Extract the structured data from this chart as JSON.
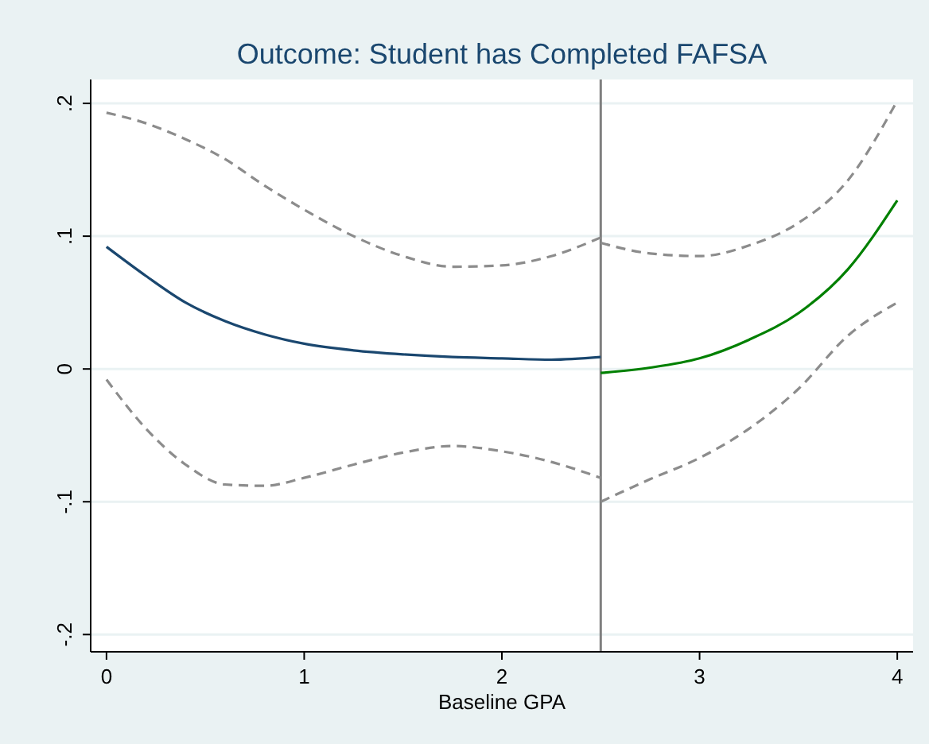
{
  "chart_data": {
    "type": "line",
    "title": "Outcome: Student has Completed FAFSA",
    "xlabel": "Baseline GPA",
    "xlim": [
      -0.08,
      4.08
    ],
    "xticks": [
      0,
      1,
      2,
      3,
      4
    ],
    "ylim": [
      -0.213,
      0.218
    ],
    "yticks": [
      {
        "value": -0.2,
        "label": "-.2"
      },
      {
        "value": -0.1,
        "label": "-.1"
      },
      0,
      {
        "value": 0.1,
        "label": ".1"
      },
      {
        "value": 0.2,
        "label": ".2"
      }
    ],
    "grid": "y",
    "line_style": "solid",
    "ref_lines": [
      {
        "axis": "x",
        "value": 2.5,
        "color": "#7f7f7f"
      }
    ],
    "series": [
      {
        "color": "#8c8c8c",
        "line_style": "dashed",
        "x": [
          0,
          0.2,
          0.4,
          0.6,
          0.8,
          1,
          1.25,
          1.5,
          1.75,
          2,
          2.25,
          2.5
        ],
        "values": [
          0.193,
          0.185,
          0.173,
          0.158,
          0.138,
          0.12,
          0.1,
          0.085,
          0.077,
          0.078,
          0.085,
          0.099
        ]
      },
      {
        "color": "#8c8c8c",
        "line_style": "dashed",
        "x": [
          0,
          0.2,
          0.4,
          0.6,
          0.8,
          1,
          1.25,
          1.5,
          1.75,
          2,
          2.25,
          2.5
        ],
        "values": [
          -0.008,
          -0.045,
          -0.072,
          -0.087,
          -0.088,
          -0.082,
          -0.072,
          -0.063,
          -0.058,
          -0.062,
          -0.07,
          -0.082
        ]
      },
      {
        "color": "#8c8c8c",
        "line_style": "dashed",
        "x": [
          2.5,
          2.75,
          3,
          3.25,
          3.5,
          3.75,
          4
        ],
        "values": [
          0.095,
          0.087,
          0.085,
          0.093,
          0.11,
          0.142,
          0.202
        ]
      },
      {
        "color": "#8c8c8c",
        "line_style": "dashed",
        "x": [
          2.5,
          2.75,
          3,
          3.25,
          3.5,
          3.75,
          4
        ],
        "values": [
          -0.1,
          -0.083,
          -0.067,
          -0.045,
          -0.015,
          0.025,
          0.05
        ]
      },
      {
        "color": "#1a476f",
        "x": [
          0,
          0.2,
          0.4,
          0.6,
          0.8,
          1,
          1.25,
          1.5,
          1.75,
          2,
          2.25,
          2.5
        ],
        "values": [
          0.092,
          0.07,
          0.05,
          0.036,
          0.026,
          0.019,
          0.014,
          0.011,
          0.009,
          0.008,
          0.007,
          0.009
        ]
      },
      {
        "color": "#008000",
        "x": [
          2.5,
          2.75,
          3,
          3.25,
          3.5,
          3.75,
          4
        ],
        "values": [
          -0.003,
          0.001,
          0.008,
          0.022,
          0.042,
          0.075,
          0.127
        ]
      }
    ]
  }
}
